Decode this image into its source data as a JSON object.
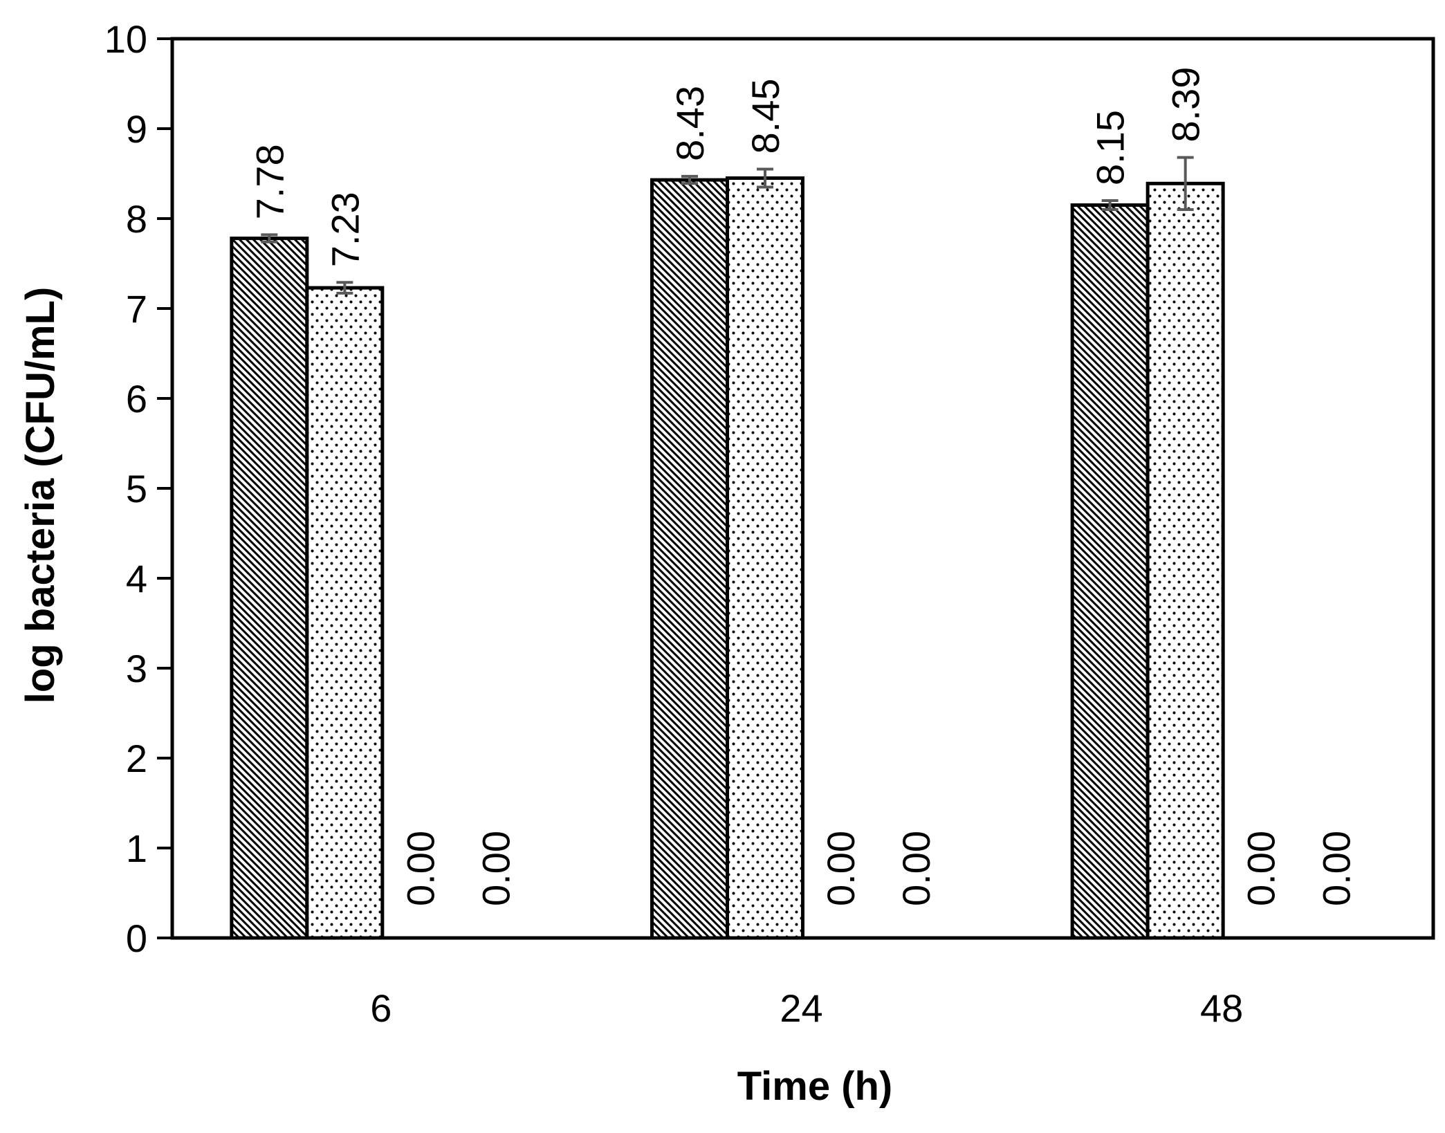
{
  "chart_data": {
    "type": "bar",
    "title": "",
    "xlabel": "Time (h)",
    "ylabel": "log bacteria (CFU/mL)",
    "categories": [
      "6",
      "24",
      "48"
    ],
    "ylim": [
      0,
      10
    ],
    "yticks": [
      0,
      1,
      2,
      3,
      4,
      5,
      6,
      7,
      8,
      9,
      10
    ],
    "grid": false,
    "legend": "none",
    "series": [
      {
        "name": "series-1",
        "pattern": "diagonal-hatch",
        "values": [
          7.78,
          8.43,
          8.15
        ],
        "errors": [
          0.04,
          0.04,
          0.05
        ],
        "labels": [
          "7.78",
          "8.43",
          "8.15"
        ]
      },
      {
        "name": "series-2",
        "pattern": "dots",
        "values": [
          7.23,
          8.45,
          8.39
        ],
        "errors": [
          0.06,
          0.1,
          0.29
        ],
        "labels": [
          "7.23",
          "8.45",
          "8.39"
        ]
      },
      {
        "name": "series-3",
        "pattern": "none",
        "values": [
          0,
          0,
          0
        ],
        "errors": [
          0,
          0,
          0
        ],
        "labels": [
          "0.00",
          "0.00",
          "0.00"
        ]
      },
      {
        "name": "series-4",
        "pattern": "none",
        "values": [
          0,
          0,
          0
        ],
        "errors": [
          0,
          0,
          0
        ],
        "labels": [
          "0.00",
          "0.00",
          "0.00"
        ]
      }
    ],
    "colors": {
      "bar_fill": "#ffffff",
      "bar_stroke": "#000000",
      "pattern": "#000000",
      "error_bar": "#595959",
      "axis": "#000000"
    }
  }
}
